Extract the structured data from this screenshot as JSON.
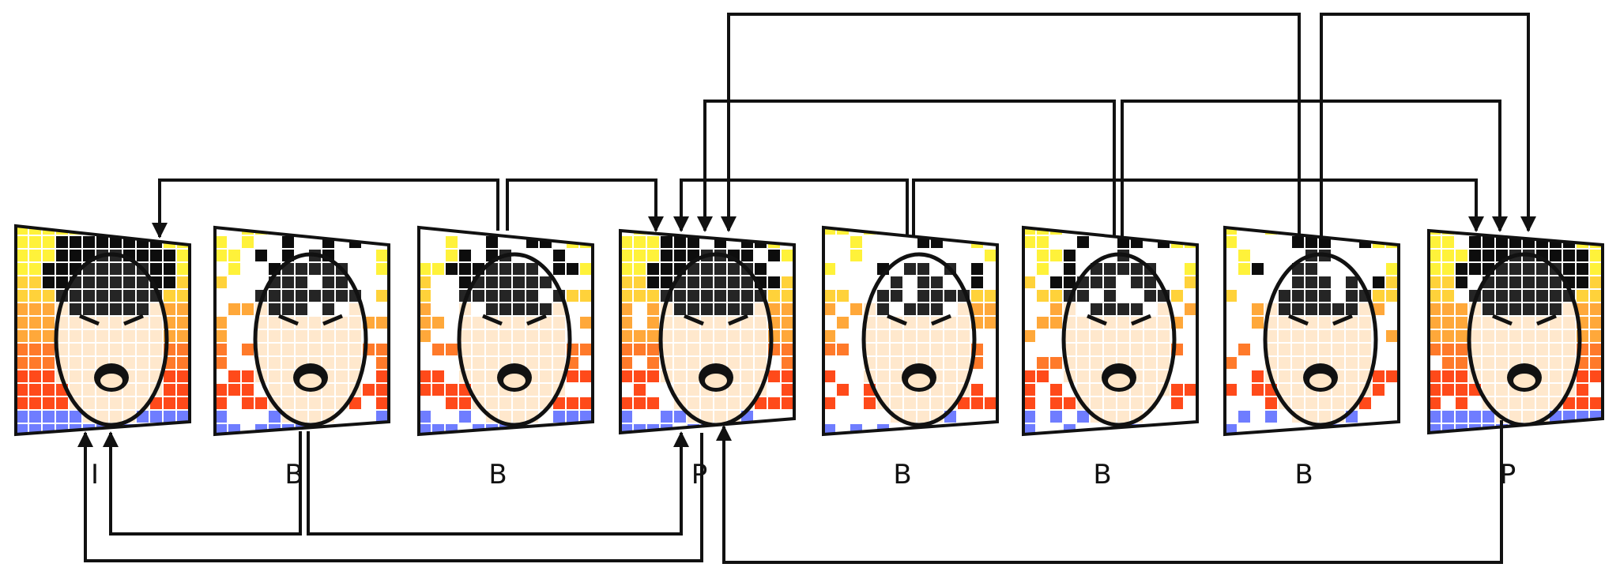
{
  "frames": [
    {
      "label": "I",
      "shape": "tilt-down",
      "density": 1.0
    },
    {
      "label": "B",
      "shape": "tilt-down",
      "density": 0.45
    },
    {
      "label": "B",
      "shape": "tilt-down",
      "density": 0.5
    },
    {
      "label": "P",
      "shape": "tilt-up",
      "density": 0.75
    },
    {
      "label": "B",
      "shape": "tilt-down",
      "density": 0.42
    },
    {
      "label": "B",
      "shape": "tilt-down",
      "density": 0.48
    },
    {
      "label": "B",
      "shape": "tilt-down",
      "density": 0.38
    },
    {
      "label": "P",
      "shape": "tilt-up",
      "density": 0.92
    }
  ],
  "colors": {
    "outline": "#111111",
    "arrow": "#111111",
    "ramp": [
      "#fff23a",
      "#ffd23a",
      "#ffa83a",
      "#ff7a2a",
      "#ff4a1a",
      "#e82a14"
    ],
    "base": "#6f7dff",
    "skin": "#ffe6c8",
    "hair": "#0d0d0d"
  },
  "references": [
    {
      "from": 1,
      "to": 0
    },
    {
      "from": 1,
      "to": 3
    },
    {
      "from": 2,
      "to": 0
    },
    {
      "from": 2,
      "to": 3
    },
    {
      "from": 3,
      "to": 0
    },
    {
      "from": 4,
      "to": 3
    },
    {
      "from": 4,
      "to": 7
    },
    {
      "from": 5,
      "to": 3
    },
    {
      "from": 5,
      "to": 7
    },
    {
      "from": 6,
      "to": 3
    },
    {
      "from": 6,
      "to": 7
    },
    {
      "from": 7,
      "to": 3
    }
  ]
}
